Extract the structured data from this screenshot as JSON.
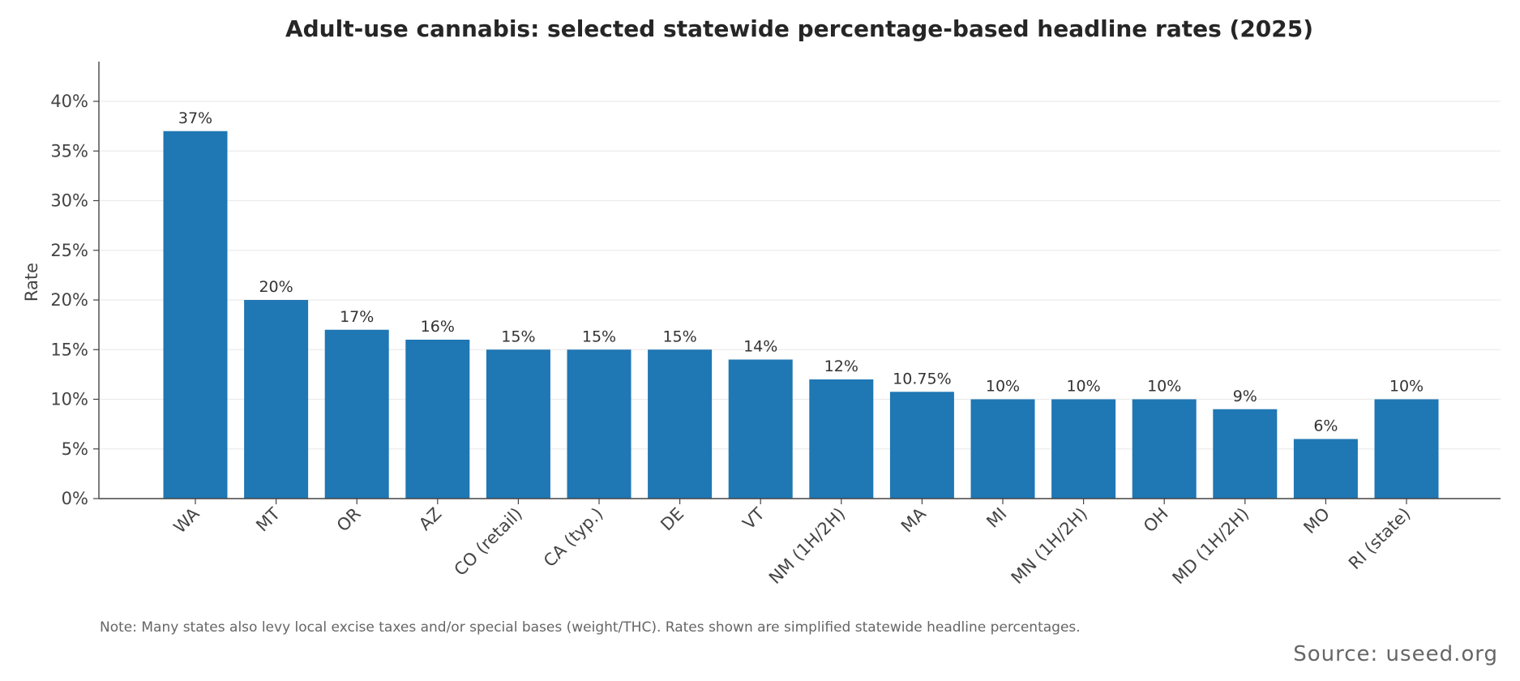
{
  "chart_data": {
    "type": "bar",
    "title": "Adult-use cannabis: selected statewide percentage-based headline rates (2025)",
    "ylabel": "Rate",
    "xlabel": "",
    "ylim": [
      0,
      44
    ],
    "yticks": [
      0,
      5,
      10,
      15,
      20,
      25,
      30,
      35,
      40
    ],
    "ytick_labels": [
      "0%",
      "5%",
      "10%",
      "15%",
      "20%",
      "25%",
      "30%",
      "35%",
      "40%"
    ],
    "categories": [
      "WA",
      "MT",
      "OR",
      "AZ",
      "CO (retail)",
      "CA (typ.)",
      "DE",
      "VT",
      "NM (1H/2H)",
      "MA",
      "MI",
      "MN (1H/2H)",
      "OH",
      "MD (1H/2H)",
      "MO",
      "RI (state)"
    ],
    "values": [
      37,
      20,
      17,
      16,
      15,
      15,
      15,
      14,
      12,
      10.75,
      10,
      10,
      10,
      9,
      6,
      10
    ],
    "data_labels": [
      "37%",
      "20%",
      "17%",
      "16%",
      "15%",
      "15%",
      "15%",
      "14%",
      "12%",
      "10.75%",
      "10%",
      "10%",
      "10%",
      "9%",
      "6%",
      "10%"
    ],
    "grid": "horizontal",
    "bar_color": "#1f77b4",
    "note": "Note: Many states also levy local excise taxes and/or special bases (weight/THC). Rates shown are simplified statewide headline percentages.",
    "source": "Source: useed.org"
  }
}
